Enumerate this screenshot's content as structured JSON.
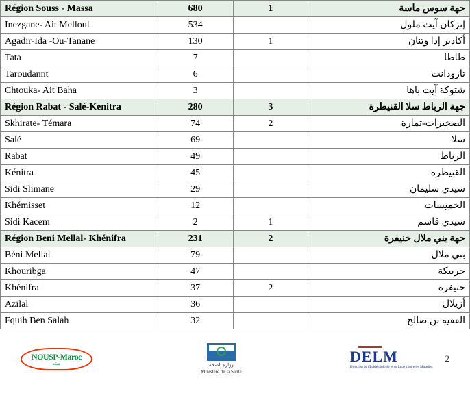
{
  "table": {
    "columns_fr": "",
    "columns_n1": "",
    "columns_n2": "",
    "columns_ar": "",
    "background_header_color": "#e6efe6",
    "border_color": "#888888",
    "font_size": 14,
    "rows": [
      {
        "hdr": true,
        "fr": "Région Souss - Massa",
        "n1": "680",
        "n2": "1",
        "ar": "جهة سوس ماسة"
      },
      {
        "hdr": false,
        "fr": "Inezgane- Ait Melloul",
        "n1": "534",
        "n2": "",
        "ar": "إنزكان آيت ملول"
      },
      {
        "hdr": false,
        "fr": "Agadir-Ida -Ou-Tanane",
        "n1": "130",
        "n2": "1",
        "ar": "أكادير إدا وتنان"
      },
      {
        "hdr": false,
        "fr": "Tata",
        "n1": "7",
        "n2": "",
        "ar": "طاطا"
      },
      {
        "hdr": false,
        "fr": "Taroudannt",
        "n1": "6",
        "n2": "",
        "ar": "تارودانت"
      },
      {
        "hdr": false,
        "fr": "Chtouka- Ait Baha",
        "n1": "3",
        "n2": "",
        "ar": "شتوكة آيت باها"
      },
      {
        "hdr": true,
        "fr": "Région Rabat - Salé-Kenitra",
        "n1": "280",
        "n2": "3",
        "ar": "جهة الرباط سلا القنيطرة"
      },
      {
        "hdr": false,
        "fr": "Skhirate- Témara",
        "n1": "74",
        "n2": "2",
        "ar": "الصخيرات-تمارة"
      },
      {
        "hdr": false,
        "fr": "Salé",
        "n1": "69",
        "n2": "",
        "ar": "سلا"
      },
      {
        "hdr": false,
        "fr": "Rabat",
        "n1": "49",
        "n2": "",
        "ar": "الرباط"
      },
      {
        "hdr": false,
        "fr": "Kénitra",
        "n1": "45",
        "n2": "",
        "ar": "القنيطرة"
      },
      {
        "hdr": false,
        "fr": "Sidi Slimane",
        "n1": "29",
        "n2": "",
        "ar": "سيدي سليمان"
      },
      {
        "hdr": false,
        "fr": "Khémisset",
        "n1": "12",
        "n2": "",
        "ar": "الخميسات"
      },
      {
        "hdr": false,
        "fr": "Sidi Kacem",
        "n1": "2",
        "n2": "1",
        "ar": "سيدي قاسم"
      },
      {
        "hdr": true,
        "fr": "Région Beni Mellal- Khénifra",
        "n1": "231",
        "n2": "2",
        "ar": "جهة بني ملال خنيفرة"
      },
      {
        "hdr": false,
        "fr": "Béni Mellal",
        "n1": "79",
        "n2": "",
        "ar": "بني ملال"
      },
      {
        "hdr": false,
        "fr": "Khouribga",
        "n1": "47",
        "n2": "",
        "ar": "خريبكة"
      },
      {
        "hdr": false,
        "fr": "Khénifra",
        "n1": "37",
        "n2": "2",
        "ar": "خنيفرة"
      },
      {
        "hdr": false,
        "fr": "Azilal",
        "n1": "36",
        "n2": "",
        "ar": "أزيلال"
      },
      {
        "hdr": false,
        "fr": "Fquih Ben Salah",
        "n1": "32",
        "n2": "",
        "ar": "الفقيه بن صالح"
      }
    ]
  },
  "footer": {
    "nousp_label": "NOUSP-Maroc",
    "min_label_ar": "وزارة الصحة",
    "min_label_fr": "Ministère de la Santé",
    "delm_label": "DELM",
    "delm_sub": "Direction de l'Epidémiologie\net de Lutte contre les Maladies",
    "page_number": "2"
  }
}
